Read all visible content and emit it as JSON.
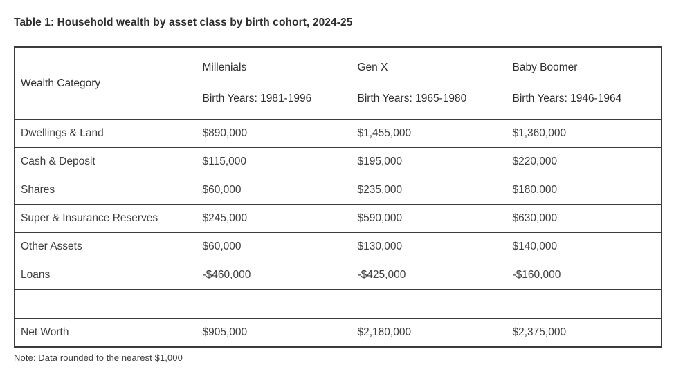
{
  "title": "Table 1: Household wealth by asset class by birth cohort, 2024-25",
  "note": "Note: Data rounded to the nearest $1,000",
  "colors": {
    "text": "#3d3d3d",
    "title_text": "#2d2d2d",
    "border": "#3b3b3b",
    "background": "#ffffff"
  },
  "table": {
    "row_header": "Wealth Category",
    "columns": [
      {
        "label": "Millenials",
        "sublabel": "Birth Years: 1981-1996"
      },
      {
        "label": "Gen X",
        "sublabel": "Birth Years: 1965-1980"
      },
      {
        "label": "Baby Boomer",
        "sublabel": "Birth Years: 1946-1964"
      }
    ],
    "rows": [
      {
        "category": "Dwellings & Land",
        "values": [
          "$890,000",
          "$1,455,000",
          "$1,360,000"
        ]
      },
      {
        "category": "Cash & Deposit",
        "values": [
          "$115,000",
          "$195,000",
          "$220,000"
        ]
      },
      {
        "category": "Shares",
        "values": [
          "$60,000",
          "$235,000",
          "$180,000"
        ]
      },
      {
        "category": "Super & Insurance Reserves",
        "values": [
          "$245,000",
          "$590,000",
          "$630,000"
        ]
      },
      {
        "category": "Other Assets",
        "values": [
          "$60,000",
          "$130,000",
          "$140,000"
        ]
      },
      {
        "category": "Loans",
        "values": [
          "-$460,000",
          "-$425,000",
          "-$160,000"
        ]
      },
      {
        "category": "",
        "values": [
          "",
          "",
          ""
        ]
      },
      {
        "category": "Net Worth",
        "values": [
          "$905,000",
          "$2,180,000",
          "$2,375,000"
        ]
      }
    ]
  }
}
